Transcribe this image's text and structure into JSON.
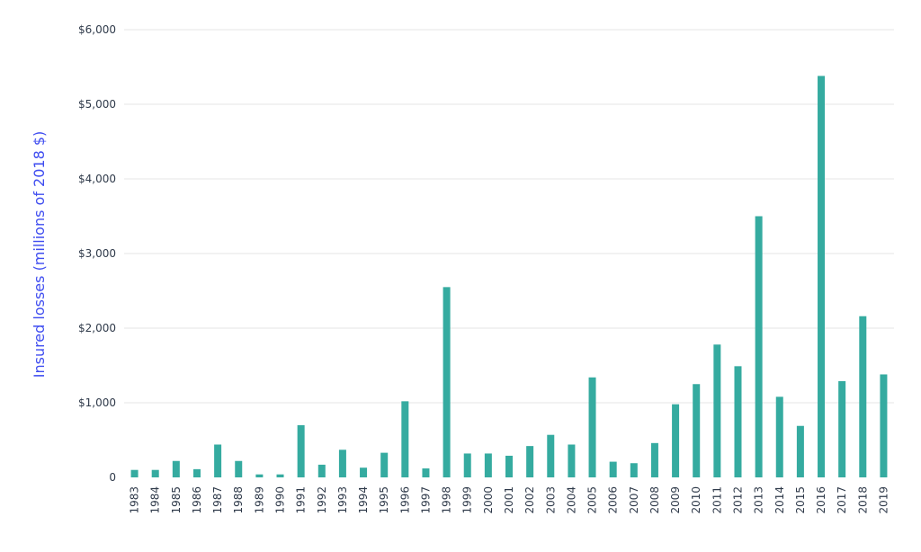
{
  "chart_data": {
    "type": "bar",
    "title": "",
    "xlabel": "",
    "ylabel": "Insured losses (millions of 2018 $)",
    "ylim": [
      0,
      6000
    ],
    "yticks": [
      0,
      1000,
      2000,
      3000,
      4000,
      5000,
      6000
    ],
    "ytick_labels": [
      "0",
      "$1,000",
      "$2,000",
      "$3,000",
      "$4,000",
      "$5,000",
      "$6,000"
    ],
    "grid": true,
    "categories": [
      "1983",
      "1984",
      "1985",
      "1986",
      "1987",
      "1988",
      "1989",
      "1990",
      "1991",
      "1992",
      "1993",
      "1994",
      "1995",
      "1996",
      "1997",
      "1998",
      "1999",
      "2000",
      "2001",
      "2002",
      "2003",
      "2004",
      "2005",
      "2006",
      "2007",
      "2008",
      "2009",
      "2010",
      "2011",
      "2012",
      "2013",
      "2014",
      "2015",
      "2016",
      "2017",
      "2018",
      "2019"
    ],
    "values": [
      100,
      100,
      220,
      110,
      440,
      220,
      40,
      40,
      700,
      170,
      370,
      130,
      330,
      1020,
      120,
      2550,
      320,
      320,
      290,
      420,
      570,
      440,
      1340,
      210,
      190,
      460,
      980,
      1250,
      1780,
      1490,
      3500,
      1080,
      690,
      5380,
      1290,
      2160,
      1380
    ],
    "colors": {
      "bar": "#35aba0",
      "ylabel": "#3f4df0",
      "grid": "#e6e6e6",
      "ticks": "#2f3a4a"
    }
  }
}
